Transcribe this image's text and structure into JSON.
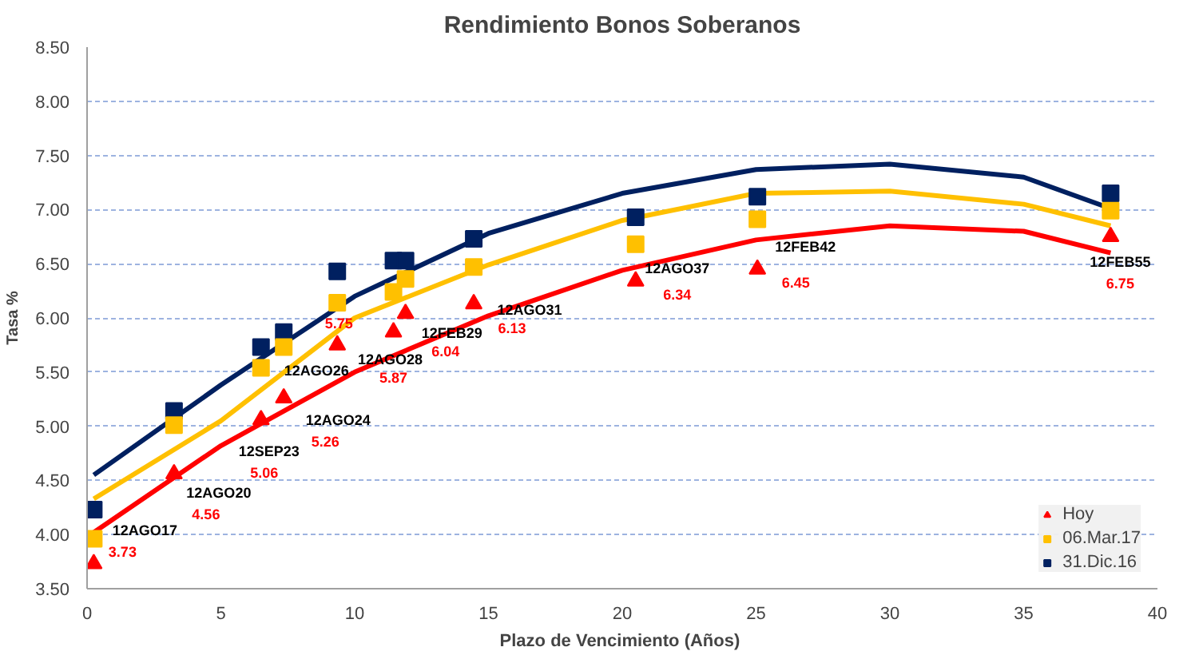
{
  "chart_data": {
    "type": "scatter",
    "title": "Rendimiento Bonos Soberanos",
    "xlabel": "Plazo de Vencimiento  (Años)",
    "ylabel": "Tasa %",
    "xlim": [
      0,
      40
    ],
    "xticks": [
      0,
      5,
      10,
      15,
      20,
      25,
      30,
      35,
      40
    ],
    "ylim": [
      3.5,
      8.5
    ],
    "yticks": [
      {
        "value": 3.5,
        "label": "3.50"
      },
      {
        "value": 4.0,
        "label": "4.00"
      },
      {
        "value": 4.5,
        "label": "4.50"
      },
      {
        "value": 5.0,
        "label": "5.00"
      },
      {
        "value": 5.5,
        "label": "5.50"
      },
      {
        "value": 6.0,
        "label": "6.00"
      },
      {
        "value": 6.5,
        "label": "6.50"
      },
      {
        "value": 7.0,
        "label": "7.00"
      },
      {
        "value": 7.5,
        "label": "7.50"
      },
      {
        "value": 8.0,
        "label": "8.00"
      },
      {
        "value": 8.5,
        "label": "8.50"
      }
    ],
    "grid": "y",
    "legend": "bottom right",
    "x": [
      0.25,
      3.25,
      6.5,
      7.35,
      9.35,
      11.45,
      11.9,
      14.45,
      20.5,
      25.05,
      38.25
    ],
    "series": [
      {
        "type": "line",
        "color": "#002060",
        "x": [
          0.25,
          5,
          10,
          15,
          20,
          25,
          30,
          35,
          38.25
        ],
        "values": [
          4.55,
          5.38,
          6.2,
          6.78,
          7.15,
          7.37,
          7.42,
          7.3,
          7.01
        ]
      },
      {
        "type": "line",
        "color": "#ffc000",
        "x": [
          0.25,
          5,
          10,
          15,
          20,
          25,
          30,
          35,
          38.25
        ],
        "values": [
          4.33,
          5.05,
          6.0,
          6.49,
          6.9,
          7.15,
          7.17,
          7.05,
          6.85
        ]
      },
      {
        "type": "line",
        "color": "#ff0000",
        "x": [
          0.25,
          5,
          10,
          15,
          20,
          25,
          30,
          35,
          38.25
        ],
        "values": [
          4.02,
          4.82,
          5.5,
          6.02,
          6.44,
          6.72,
          6.85,
          6.8,
          6.6
        ]
      },
      {
        "name": "31.Dic.16",
        "color": "#002060",
        "marker": "square",
        "values": [
          4.23,
          5.14,
          5.73,
          5.87,
          6.43,
          6.53,
          6.53,
          6.73,
          6.93,
          7.12,
          7.15
        ]
      },
      {
        "name": "06.Mar.17",
        "color": "#ffc000",
        "marker": "square",
        "values": [
          3.96,
          5.01,
          5.54,
          5.73,
          6.14,
          6.24,
          6.36,
          6.47,
          6.68,
          6.91,
          6.99
        ]
      },
      {
        "name": "Hoy",
        "color": "#ff0000",
        "marker": "triangle",
        "values": [
          3.73,
          4.56,
          5.06,
          5.26,
          5.75,
          5.87,
          6.04,
          6.13,
          6.34,
          6.45,
          6.75
        ],
        "value_labels": [
          "3.73",
          "4.56",
          "5.06",
          "5.26",
          "5.75",
          "5.87",
          "6.04",
          "6.13",
          "6.34",
          "6.45",
          "6.75"
        ]
      }
    ],
    "annotations": [
      {
        "text": "12AGO17",
        "x": 0.25,
        "y": 3.73
      },
      {
        "text": "12AGO20",
        "x": 3.25,
        "y": 4.56
      },
      {
        "text": "12SEP23",
        "x": 6.5,
        "y": 5.06
      },
      {
        "text": "12AGO24",
        "x": 7.35,
        "y": 5.26
      },
      {
        "text": "12AGO26",
        "x": 9.35,
        "y": 5.75
      },
      {
        "text": "12AGO28",
        "x": 11.45,
        "y": 5.87
      },
      {
        "text": "12FEB29",
        "x": 11.9,
        "y": 6.04
      },
      {
        "text": "12AGO31",
        "x": 14.45,
        "y": 6.13
      },
      {
        "text": "12AGO37",
        "x": 20.5,
        "y": 6.34
      },
      {
        "text": "12FEB42",
        "x": 25.05,
        "y": 6.45
      },
      {
        "text": "12FEB55",
        "x": 38.25,
        "y": 6.75
      }
    ]
  }
}
